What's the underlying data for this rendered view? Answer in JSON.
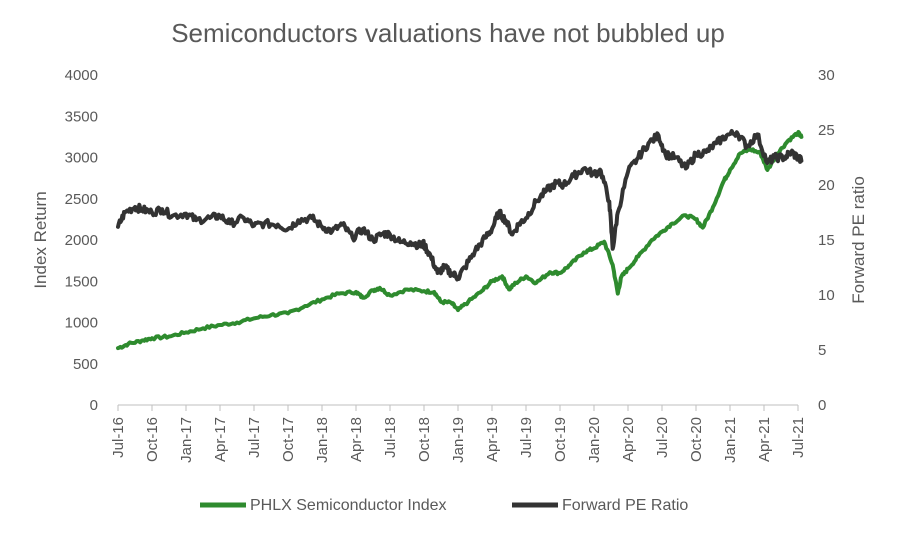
{
  "chart_data": {
    "type": "line",
    "title": "Semiconductors valuations have not bubbled up",
    "y_left_label": "Index Return",
    "y_right_label": "Forward PE ratio",
    "y_left_range": [
      0,
      4000
    ],
    "y_left_ticks": [
      0,
      500,
      1000,
      1500,
      2000,
      2500,
      3000,
      3500,
      4000
    ],
    "y_right_range": [
      0,
      30
    ],
    "y_right_ticks": [
      0,
      5,
      10,
      15,
      20,
      25,
      30
    ],
    "x_tick_labels": [
      "Jul-16",
      "Oct-16",
      "Jan-17",
      "Apr-17",
      "Jul-17",
      "Oct-17",
      "Jan-18",
      "Apr-18",
      "Jul-18",
      "Oct-18",
      "Jan-19",
      "Apr-19",
      "Jul-19",
      "Oct-19",
      "Jan-20",
      "Apr-20",
      "Jul-20",
      "Oct-20",
      "Jan-21",
      "Apr-21",
      "Jul-21"
    ],
    "series": [
      {
        "name": "PHLX Semiconductor Index",
        "axis": "left",
        "color": "#2e8b2e",
        "points": [
          [
            0.0,
            690
          ],
          [
            0.3,
            740
          ],
          [
            0.7,
            780
          ],
          [
            1.0,
            810
          ],
          [
            1.5,
            830
          ],
          [
            2.0,
            880
          ],
          [
            2.5,
            930
          ],
          [
            3.0,
            970
          ],
          [
            3.5,
            1000
          ],
          [
            4.0,
            1050
          ],
          [
            4.5,
            1090
          ],
          [
            5.0,
            1110
          ],
          [
            5.5,
            1200
          ],
          [
            6.0,
            1280
          ],
          [
            6.5,
            1350
          ],
          [
            7.0,
            1370
          ],
          [
            7.2,
            1300
          ],
          [
            7.5,
            1390
          ],
          [
            7.7,
            1420
          ],
          [
            8.0,
            1330
          ],
          [
            8.5,
            1400
          ],
          [
            9.0,
            1380
          ],
          [
            9.3,
            1370
          ],
          [
            9.5,
            1250
          ],
          [
            9.8,
            1240
          ],
          [
            10.0,
            1150
          ],
          [
            10.3,
            1250
          ],
          [
            10.7,
            1380
          ],
          [
            11.0,
            1500
          ],
          [
            11.3,
            1560
          ],
          [
            11.5,
            1400
          ],
          [
            11.7,
            1480
          ],
          [
            12.0,
            1560
          ],
          [
            12.3,
            1480
          ],
          [
            12.7,
            1610
          ],
          [
            13.0,
            1600
          ],
          [
            13.3,
            1700
          ],
          [
            13.7,
            1850
          ],
          [
            14.0,
            1900
          ],
          [
            14.3,
            1980
          ],
          [
            14.55,
            1700
          ],
          [
            14.7,
            1350
          ],
          [
            14.8,
            1550
          ],
          [
            15.0,
            1650
          ],
          [
            15.3,
            1800
          ],
          [
            15.7,
            2000
          ],
          [
            16.0,
            2100
          ],
          [
            16.3,
            2200
          ],
          [
            16.7,
            2300
          ],
          [
            17.0,
            2250
          ],
          [
            17.2,
            2150
          ],
          [
            17.5,
            2400
          ],
          [
            17.8,
            2700
          ],
          [
            18.0,
            2850
          ],
          [
            18.3,
            3050
          ],
          [
            18.6,
            3100
          ],
          [
            18.9,
            3050
          ],
          [
            19.1,
            2850
          ],
          [
            19.4,
            3050
          ],
          [
            19.7,
            3200
          ],
          [
            20.0,
            3300
          ],
          [
            20.1,
            3250
          ]
        ]
      },
      {
        "name": "Forward PE Ratio",
        "axis": "right",
        "color": "#333333",
        "points": [
          [
            0.0,
            16.2
          ],
          [
            0.2,
            17.5
          ],
          [
            0.5,
            18.0
          ],
          [
            0.7,
            17.8
          ],
          [
            1.0,
            17.5
          ],
          [
            1.3,
            17.8
          ],
          [
            1.6,
            17.2
          ],
          [
            2.0,
            17.4
          ],
          [
            2.3,
            16.8
          ],
          [
            2.7,
            17.0
          ],
          [
            3.0,
            17.2
          ],
          [
            3.3,
            16.5
          ],
          [
            3.7,
            17.0
          ],
          [
            4.0,
            16.3
          ],
          [
            4.3,
            16.5
          ],
          [
            4.7,
            16.4
          ],
          [
            5.0,
            16.0
          ],
          [
            5.3,
            16.8
          ],
          [
            5.7,
            17.0
          ],
          [
            6.0,
            16.2
          ],
          [
            6.3,
            15.8
          ],
          [
            6.6,
            16.4
          ],
          [
            6.9,
            15.2
          ],
          [
            7.2,
            16.0
          ],
          [
            7.5,
            15.0
          ],
          [
            7.8,
            15.6
          ],
          [
            8.0,
            15.5
          ],
          [
            8.3,
            14.8
          ],
          [
            8.6,
            14.8
          ],
          [
            8.9,
            14.5
          ],
          [
            9.0,
            14.6
          ],
          [
            9.2,
            13.5
          ],
          [
            9.4,
            12.0
          ],
          [
            9.6,
            12.5
          ],
          [
            9.8,
            12.0
          ],
          [
            10.0,
            11.6
          ],
          [
            10.2,
            12.5
          ],
          [
            10.5,
            14.0
          ],
          [
            10.8,
            15.2
          ],
          [
            11.0,
            16.0
          ],
          [
            11.2,
            17.5
          ],
          [
            11.4,
            16.8
          ],
          [
            11.6,
            15.5
          ],
          [
            11.8,
            16.5
          ],
          [
            12.0,
            17.0
          ],
          [
            12.3,
            18.5
          ],
          [
            12.6,
            19.5
          ],
          [
            12.9,
            20.2
          ],
          [
            13.1,
            20.0
          ],
          [
            13.4,
            20.8
          ],
          [
            13.7,
            21.5
          ],
          [
            14.0,
            21.0
          ],
          [
            14.2,
            21.3
          ],
          [
            14.45,
            18.5
          ],
          [
            14.55,
            14.2
          ],
          [
            14.7,
            17.5
          ],
          [
            15.0,
            21.2
          ],
          [
            15.3,
            22.5
          ],
          [
            15.6,
            23.8
          ],
          [
            15.9,
            24.5
          ],
          [
            16.1,
            22.8
          ],
          [
            16.4,
            22.5
          ],
          [
            16.7,
            21.5
          ],
          [
            17.0,
            22.8
          ],
          [
            17.3,
            23.0
          ],
          [
            17.6,
            23.8
          ],
          [
            17.9,
            24.5
          ],
          [
            18.2,
            24.8
          ],
          [
            18.5,
            23.5
          ],
          [
            18.8,
            24.6
          ],
          [
            19.1,
            22.0
          ],
          [
            19.3,
            22.5
          ],
          [
            19.6,
            22.5
          ],
          [
            19.8,
            23.0
          ],
          [
            20.0,
            22.5
          ],
          [
            20.1,
            22.2
          ]
        ]
      }
    ],
    "legend": [
      "PHLX Semiconductor Index",
      "Forward PE Ratio"
    ]
  }
}
